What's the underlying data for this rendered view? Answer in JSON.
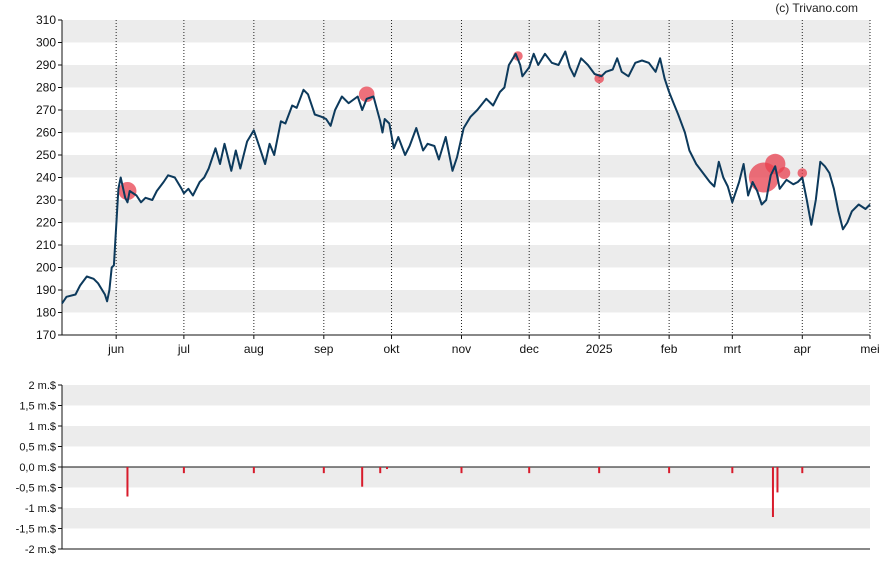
{
  "credit": "(c) Trivano.com",
  "colors": {
    "price_line": "#0d3a5c",
    "event_dot": "#e8404f",
    "volume_bar": "#d81b2b",
    "band": "#ececec",
    "axis": "#111111"
  },
  "chart_data": [
    {
      "type": "line",
      "title": "",
      "y_ticks": [
        170,
        180,
        190,
        200,
        210,
        220,
        230,
        240,
        250,
        260,
        270,
        280,
        290,
        300,
        310
      ],
      "ylim": [
        170,
        310
      ],
      "x_range": [
        "2024-05-08",
        "2025-05-01"
      ],
      "month_ticks": [
        {
          "date": "2024-06-01",
          "label": "jun"
        },
        {
          "date": "2024-07-01",
          "label": "jul"
        },
        {
          "date": "2024-08-01",
          "label": "aug"
        },
        {
          "date": "2024-09-01",
          "label": "sep"
        },
        {
          "date": "2024-10-01",
          "label": "okt"
        },
        {
          "date": "2024-11-01",
          "label": "nov"
        },
        {
          "date": "2024-12-01",
          "label": "dec"
        },
        {
          "date": "2025-01-01",
          "label": "2025"
        },
        {
          "date": "2025-02-01",
          "label": "feb"
        },
        {
          "date": "2025-03-01",
          "label": "mrt"
        },
        {
          "date": "2025-04-01",
          "label": "apr"
        },
        {
          "date": "2025-05-01",
          "label": "mei"
        }
      ],
      "grid": "alternating horizontal bands, dotted vertical month lines",
      "series": [
        {
          "values": [
            [
              "2024-05-08",
              184
            ],
            [
              "2024-05-10",
              187
            ],
            [
              "2024-05-14",
              188
            ],
            [
              "2024-05-16",
              192
            ],
            [
              "2024-05-19",
              196
            ],
            [
              "2024-05-22",
              195
            ],
            [
              "2024-05-24",
              193
            ],
            [
              "2024-05-27",
              188
            ],
            [
              "2024-05-28",
              185
            ],
            [
              "2024-05-29",
              190
            ],
            [
              "2024-05-30",
              200
            ],
            [
              "2024-05-31",
              201
            ],
            [
              "2024-06-02",
              235
            ],
            [
              "2024-06-03",
              240
            ],
            [
              "2024-06-05",
              231
            ],
            [
              "2024-06-06",
              229
            ],
            [
              "2024-06-07",
              234
            ],
            [
              "2024-06-10",
              232
            ],
            [
              "2024-06-12",
              229
            ],
            [
              "2024-06-14",
              231
            ],
            [
              "2024-06-17",
              230
            ],
            [
              "2024-06-19",
              234
            ],
            [
              "2024-06-22",
              238
            ],
            [
              "2024-06-24",
              241
            ],
            [
              "2024-06-27",
              240
            ],
            [
              "2024-06-30",
              235
            ],
            [
              "2024-07-01",
              233
            ],
            [
              "2024-07-03",
              235
            ],
            [
              "2024-07-05",
              232
            ],
            [
              "2024-07-08",
              238
            ],
            [
              "2024-07-10",
              240
            ],
            [
              "2024-07-12",
              244
            ],
            [
              "2024-07-15",
              253
            ],
            [
              "2024-07-17",
              246
            ],
            [
              "2024-07-19",
              255
            ],
            [
              "2024-07-22",
              243
            ],
            [
              "2024-07-24",
              252
            ],
            [
              "2024-07-26",
              244
            ],
            [
              "2024-07-29",
              256
            ],
            [
              "2024-08-01",
              261
            ],
            [
              "2024-08-03",
              255
            ],
            [
              "2024-08-06",
              246
            ],
            [
              "2024-08-08",
              255
            ],
            [
              "2024-08-10",
              250
            ],
            [
              "2024-08-13",
              265
            ],
            [
              "2024-08-15",
              264
            ],
            [
              "2024-08-18",
              272
            ],
            [
              "2024-08-20",
              271
            ],
            [
              "2024-08-23",
              279
            ],
            [
              "2024-08-25",
              277
            ],
            [
              "2024-08-28",
              268
            ],
            [
              "2024-08-31",
              267
            ],
            [
              "2024-09-02",
              266
            ],
            [
              "2024-09-04",
              263
            ],
            [
              "2024-09-06",
              270
            ],
            [
              "2024-09-09",
              276
            ],
            [
              "2024-09-12",
              273
            ],
            [
              "2024-09-16",
              276
            ],
            [
              "2024-09-18",
              270
            ],
            [
              "2024-09-20",
              275
            ],
            [
              "2024-09-23",
              276
            ],
            [
              "2024-09-26",
              265
            ],
            [
              "2024-09-27",
              260
            ],
            [
              "2024-09-28",
              266
            ],
            [
              "2024-09-30",
              264
            ],
            [
              "2024-10-02",
              253
            ],
            [
              "2024-10-04",
              258
            ],
            [
              "2024-10-07",
              250
            ],
            [
              "2024-10-09",
              254
            ],
            [
              "2024-10-12",
              262
            ],
            [
              "2024-10-15",
              252
            ],
            [
              "2024-10-17",
              255
            ],
            [
              "2024-10-20",
              254
            ],
            [
              "2024-10-22",
              248
            ],
            [
              "2024-10-25",
              258
            ],
            [
              "2024-10-28",
              243
            ],
            [
              "2024-10-30",
              249
            ],
            [
              "2024-11-02",
              262
            ],
            [
              "2024-11-05",
              267
            ],
            [
              "2024-11-08",
              270
            ],
            [
              "2024-11-12",
              275
            ],
            [
              "2024-11-15",
              272
            ],
            [
              "2024-11-18",
              278
            ],
            [
              "2024-11-20",
              280
            ],
            [
              "2024-11-22",
              290
            ],
            [
              "2024-11-25",
              295
            ],
            [
              "2024-11-27",
              290
            ],
            [
              "2024-11-28",
              285
            ],
            [
              "2024-12-01",
              289
            ],
            [
              "2024-12-03",
              295
            ],
            [
              "2024-12-05",
              290
            ],
            [
              "2024-12-08",
              295
            ],
            [
              "2024-12-11",
              291
            ],
            [
              "2024-12-14",
              290
            ],
            [
              "2024-12-17",
              296
            ],
            [
              "2024-12-19",
              289
            ],
            [
              "2024-12-21",
              285
            ],
            [
              "2024-12-24",
              293
            ],
            [
              "2024-12-27",
              290
            ],
            [
              "2024-12-30",
              286
            ],
            [
              "2025-01-02",
              285
            ],
            [
              "2025-01-04",
              287
            ],
            [
              "2025-01-07",
              288
            ],
            [
              "2025-01-09",
              293
            ],
            [
              "2025-01-11",
              287
            ],
            [
              "2025-01-14",
              285
            ],
            [
              "2025-01-17",
              291
            ],
            [
              "2025-01-20",
              292
            ],
            [
              "2025-01-23",
              291
            ],
            [
              "2025-01-26",
              287
            ],
            [
              "2025-01-28",
              293
            ],
            [
              "2025-01-30",
              284
            ],
            [
              "2025-02-01",
              278
            ],
            [
              "2025-02-03",
              273
            ],
            [
              "2025-02-05",
              268
            ],
            [
              "2025-02-08",
              260
            ],
            [
              "2025-02-10",
              252
            ],
            [
              "2025-02-13",
              246
            ],
            [
              "2025-02-16",
              242
            ],
            [
              "2025-02-19",
              238
            ],
            [
              "2025-02-21",
              236
            ],
            [
              "2025-02-23",
              247
            ],
            [
              "2025-02-25",
              240
            ],
            [
              "2025-02-27",
              236
            ],
            [
              "2025-03-01",
              229
            ],
            [
              "2025-03-04",
              238
            ],
            [
              "2025-03-06",
              246
            ],
            [
              "2025-03-08",
              232
            ],
            [
              "2025-03-10",
              238
            ],
            [
              "2025-03-12",
              234
            ],
            [
              "2025-03-14",
              228
            ],
            [
              "2025-03-16",
              230
            ],
            [
              "2025-03-18",
              241
            ],
            [
              "2025-03-20",
              245
            ],
            [
              "2025-03-22",
              235
            ],
            [
              "2025-03-25",
              239
            ],
            [
              "2025-03-28",
              237
            ],
            [
              "2025-03-30",
              238
            ],
            [
              "2025-04-01",
              240
            ],
            [
              "2025-04-03",
              230
            ],
            [
              "2025-04-05",
              219
            ],
            [
              "2025-04-07",
              230
            ],
            [
              "2025-04-09",
              247
            ],
            [
              "2025-04-11",
              245
            ],
            [
              "2025-04-13",
              242
            ],
            [
              "2025-04-15",
              235
            ],
            [
              "2025-04-17",
              225
            ],
            [
              "2025-04-19",
              217
            ],
            [
              "2025-04-21",
              220
            ],
            [
              "2025-04-23",
              225
            ],
            [
              "2025-04-26",
              228
            ],
            [
              "2025-04-29",
              226
            ],
            [
              "2025-05-01",
              228
            ]
          ]
        }
      ],
      "events": [
        {
          "date": "2024-06-06",
          "value": 234,
          "size": 1.0
        },
        {
          "date": "2024-09-20",
          "value": 277,
          "size": 0.8
        },
        {
          "date": "2024-11-26",
          "value": 294,
          "size": 0.3
        },
        {
          "date": "2025-01-01",
          "value": 284,
          "size": 0.3
        },
        {
          "date": "2025-03-15",
          "value": 240,
          "size": 2.0
        },
        {
          "date": "2025-03-20",
          "value": 246,
          "size": 1.2
        },
        {
          "date": "2025-03-24",
          "value": 242,
          "size": 0.5
        },
        {
          "date": "2025-04-01",
          "value": 242,
          "size": 0.3
        }
      ]
    },
    {
      "type": "bar",
      "y_ticks": [
        -2,
        -1.5,
        -1,
        -0.5,
        0,
        0.5,
        1,
        1.5,
        2
      ],
      "y_tick_labels": [
        "-2 m.$",
        "-1,5 m.$",
        "-1 m.$",
        "-0,5 m.$",
        "0,0 m.$",
        "0,5 m.$",
        "1 m.$",
        "1,5 m.$",
        "2 m.$"
      ],
      "ylim": [
        -2,
        2
      ],
      "series": [
        {
          "values": [
            [
              "2024-06-06",
              -0.72
            ],
            [
              "2024-07-01",
              -0.15
            ],
            [
              "2024-08-01",
              -0.15
            ],
            [
              "2024-09-01",
              -0.15
            ],
            [
              "2024-09-18",
              -0.48
            ],
            [
              "2024-09-26",
              -0.15
            ],
            [
              "2024-09-29",
              -0.05
            ],
            [
              "2024-11-01",
              -0.15
            ],
            [
              "2024-12-01",
              -0.15
            ],
            [
              "2025-01-01",
              -0.15
            ],
            [
              "2025-02-01",
              -0.15
            ],
            [
              "2025-03-01",
              -0.15
            ],
            [
              "2025-03-19",
              -1.22
            ],
            [
              "2025-03-21",
              -0.62
            ],
            [
              "2025-04-01",
              -0.15
            ]
          ]
        }
      ]
    }
  ]
}
